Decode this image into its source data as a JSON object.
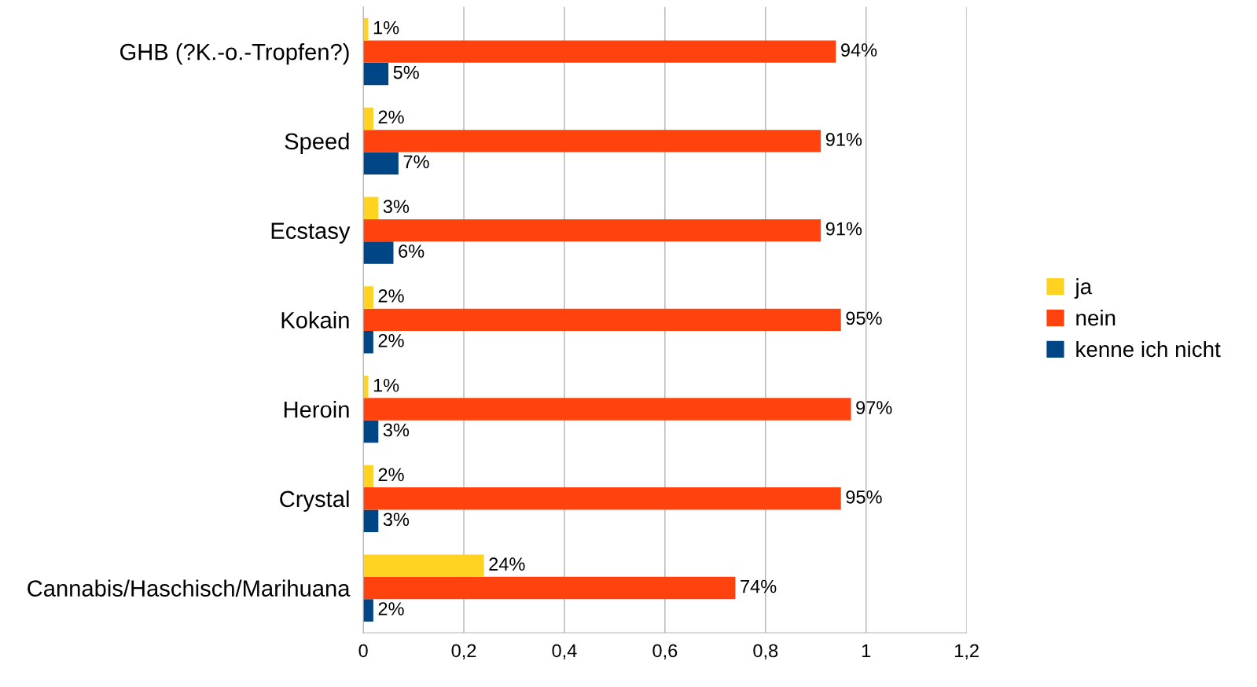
{
  "chart_data": {
    "type": "bar",
    "orientation": "horizontal",
    "categories": [
      "GHB (?K.-o.-Tropfen?)",
      "Speed",
      "Ecstasy",
      "Kokain",
      "Heroin",
      "Crystal",
      "Cannabis/Haschisch/Marihuana"
    ],
    "series": [
      {
        "name": "kenne ich nicht",
        "color": "#004586",
        "values": [
          0.05,
          0.07,
          0.06,
          0.02,
          0.03,
          0.03,
          0.02
        ],
        "value_labels": [
          "5%",
          "7%",
          "6%",
          "2%",
          "3%",
          "3%",
          "2%"
        ]
      },
      {
        "name": "nein",
        "color": "#ff420e",
        "values": [
          0.94,
          0.91,
          0.91,
          0.95,
          0.97,
          0.95,
          0.74
        ],
        "value_labels": [
          "94%",
          "91%",
          "91%",
          "95%",
          "97%",
          "95%",
          "74%"
        ]
      },
      {
        "name": "ja",
        "color": "#ffd320",
        "values": [
          0.01,
          0.02,
          0.03,
          0.02,
          0.01,
          0.02,
          0.24
        ],
        "value_labels": [
          "1%",
          "2%",
          "3%",
          "2%",
          "1%",
          "2%",
          "24%"
        ]
      }
    ],
    "xlim": [
      0,
      1.2
    ],
    "xticks": [
      0,
      {
        "value": 0.2,
        "label": "0,2"
      },
      {
        "value": 0.4,
        "label": "0,4"
      },
      {
        "value": 0.6,
        "label": "0,6"
      },
      {
        "value": 0.8,
        "label": "0,8"
      },
      1,
      {
        "value": 1.2,
        "label": "1,2"
      }
    ],
    "grid": "x",
    "legend": "right"
  }
}
